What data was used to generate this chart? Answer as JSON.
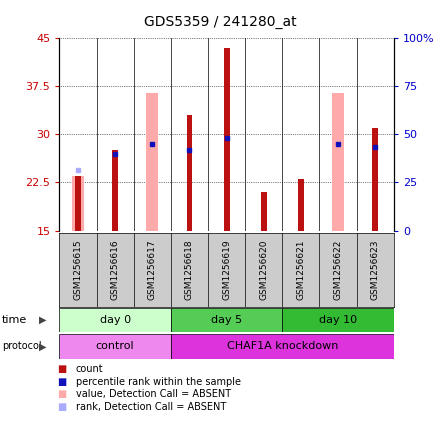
{
  "title": "GDS5359 / 241280_at",
  "samples": [
    "GSM1256615",
    "GSM1256616",
    "GSM1256617",
    "GSM1256618",
    "GSM1256619",
    "GSM1256620",
    "GSM1256621",
    "GSM1256622",
    "GSM1256623"
  ],
  "count_values": [
    23.5,
    27.5,
    null,
    33.0,
    43.5,
    21.0,
    23.0,
    null,
    31.0
  ],
  "rank_values": [
    null,
    27.0,
    28.5,
    27.5,
    29.5,
    null,
    null,
    28.5,
    28.0
  ],
  "absent_value_bars": [
    23.5,
    null,
    36.5,
    null,
    null,
    null,
    null,
    36.5,
    null
  ],
  "absent_rank_dots": [
    24.5,
    null,
    null,
    null,
    null,
    null,
    null,
    null,
    null
  ],
  "ylim": [
    15,
    45
  ],
  "yticks": [
    15,
    22.5,
    30,
    37.5,
    45
  ],
  "y2lim": [
    0,
    100
  ],
  "y2ticks": [
    0,
    25,
    50,
    75,
    100
  ],
  "time_groups": [
    {
      "label": "day 0",
      "cols": [
        0,
        1,
        2
      ],
      "color": "#ccffcc"
    },
    {
      "label": "day 5",
      "cols": [
        3,
        4,
        5
      ],
      "color": "#55cc55"
    },
    {
      "label": "day 10",
      "cols": [
        6,
        7,
        8
      ],
      "color": "#33bb33"
    }
  ],
  "protocol_groups": [
    {
      "label": "control",
      "cols": [
        0,
        1,
        2
      ],
      "color": "#ee88ee"
    },
    {
      "label": "CHAF1A knockdown",
      "cols": [
        3,
        4,
        5,
        6,
        7,
        8
      ],
      "color": "#dd33dd"
    }
  ],
  "count_color": "#bb1111",
  "rank_color": "#1111bb",
  "absent_value_color": "#ffaaaa",
  "absent_rank_color": "#aaaaff",
  "grid_color": "#000000",
  "axis_label_color_left": "#cc0000",
  "axis_label_color_right": "#0000cc",
  "bar_width": 0.35,
  "sample_area_bg": "#cccccc"
}
